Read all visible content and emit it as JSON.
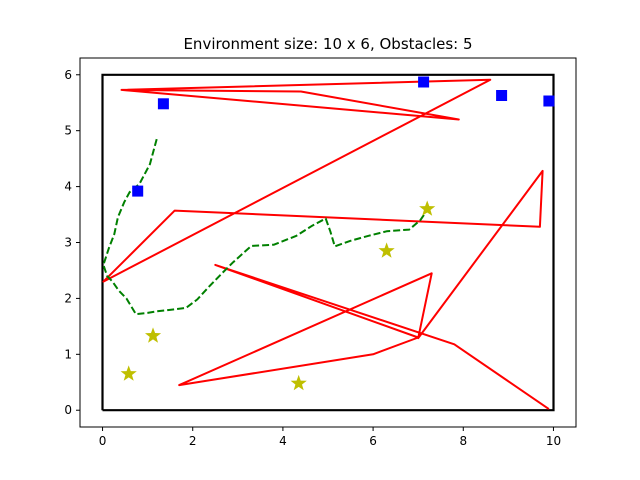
{
  "chart_data": {
    "type": "line",
    "title": "Environment size: 10 x 6, Obstacles: 5",
    "xlabel": "",
    "ylabel": "",
    "xlim": [
      -0.5,
      10.5
    ],
    "ylim": [
      -0.3,
      6.3
    ],
    "xticks": [
      0,
      2,
      4,
      6,
      8,
      10
    ],
    "yticks": [
      0,
      1,
      2,
      3,
      4,
      5,
      6
    ],
    "grid": false,
    "colors": {
      "boundary": "#000000",
      "red_path": "#ff0000",
      "green_path": "#008000",
      "blue_markers": "#0000ff",
      "star_markers": "#bfbf00"
    },
    "boundary": {
      "x": [
        0,
        10,
        10,
        0,
        0
      ],
      "y": [
        0,
        0,
        6,
        6,
        0
      ]
    },
    "series": [
      {
        "style": "red-solid",
        "x": [
          0.42,
          4.4,
          7.9,
          0.42,
          8.6,
          0.02,
          1.6,
          9.7,
          9.76,
          7.0,
          7.3,
          1.7,
          6.0,
          7.0,
          2.5,
          7.8,
          9.9
        ],
        "y": [
          5.73,
          5.7,
          5.2,
          5.73,
          5.91,
          2.3,
          3.57,
          3.28,
          4.28,
          1.29,
          2.45,
          0.45,
          1.0,
          1.3,
          2.6,
          1.18,
          0.02
        ]
      },
      {
        "style": "green-dashed",
        "x": [
          1.2,
          1.05,
          0.82,
          0.6,
          0.48,
          0.34,
          0.26,
          0.14,
          0.02,
          0.1,
          0.22,
          0.36,
          0.53,
          0.74,
          1.0,
          1.2,
          1.45,
          1.85,
          2.1,
          2.35,
          2.65,
          2.9,
          3.3,
          3.8,
          4.3,
          4.65,
          4.95,
          5.05,
          5.15,
          5.5,
          5.9,
          6.3,
          6.8,
          7.05,
          7.2
        ],
        "y": [
          4.85,
          4.4,
          4.05,
          3.9,
          3.72,
          3.45,
          3.15,
          2.9,
          2.6,
          2.4,
          2.3,
          2.14,
          2.0,
          1.72,
          1.74,
          1.77,
          1.79,
          1.83,
          1.98,
          2.2,
          2.45,
          2.65,
          2.94,
          2.96,
          3.12,
          3.3,
          3.43,
          3.2,
          2.93,
          3.03,
          3.12,
          3.2,
          3.23,
          3.4,
          3.58
        ]
      }
    ],
    "markers": {
      "squares": {
        "x": [
          1.35,
          0.78,
          7.12,
          8.85,
          9.9
        ],
        "y": [
          5.48,
          3.92,
          5.87,
          5.63,
          5.53
        ]
      },
      "stars": {
        "x": [
          0.58,
          1.12,
          4.35,
          6.3,
          7.2
        ],
        "y": [
          0.65,
          1.33,
          0.48,
          2.85,
          3.6
        ]
      }
    }
  }
}
